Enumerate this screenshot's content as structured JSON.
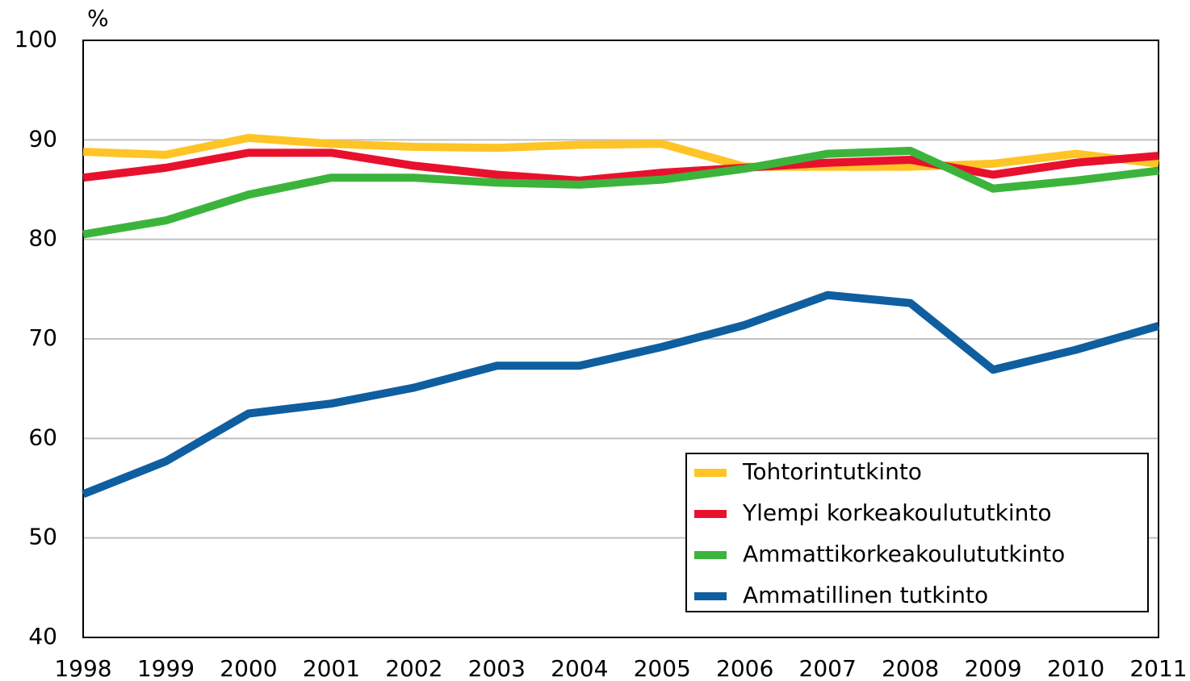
{
  "chart_data": {
    "type": "line",
    "y_label": "%",
    "x": [
      1998,
      1999,
      2000,
      2001,
      2002,
      2003,
      2004,
      2005,
      2006,
      2007,
      2008,
      2009,
      2010,
      2011
    ],
    "xlim": [
      1998,
      2011
    ],
    "xticks": [
      1998,
      1999,
      2000,
      2001,
      2002,
      2003,
      2004,
      2005,
      2006,
      2007,
      2008,
      2009,
      2010,
      2011
    ],
    "ylim": [
      40,
      100
    ],
    "yticks": [
      40,
      50,
      60,
      70,
      80,
      90,
      100
    ],
    "grid": true,
    "legend": "lower right",
    "series": [
      {
        "name": "Tohtorintutkinto",
        "color": "#ffc425",
        "values": [
          88.8,
          88.5,
          90.2,
          89.6,
          89.3,
          89.2,
          89.5,
          89.6,
          87.3,
          87.3,
          87.3,
          87.6,
          88.6,
          87.6
        ]
      },
      {
        "name": "Ylempi korkeakoulututkinto",
        "color": "#e8112d",
        "values": [
          86.2,
          87.2,
          88.7,
          88.7,
          87.4,
          86.5,
          85.9,
          86.7,
          87.2,
          87.7,
          88.0,
          86.5,
          87.7,
          88.4
        ]
      },
      {
        "name": "Ammattikorkeakoulututkinto",
        "color": "#3cb43c",
        "values": [
          80.5,
          81.9,
          84.5,
          86.2,
          86.2,
          85.7,
          85.5,
          86.0,
          87.1,
          88.6,
          88.9,
          85.1,
          85.9,
          86.9
        ]
      },
      {
        "name": "Ammatillinen tutkinto",
        "color": "#0f5ea0",
        "values": [
          54.4,
          57.7,
          62.5,
          63.5,
          65.1,
          67.3,
          67.3,
          69.2,
          71.4,
          74.4,
          73.6,
          66.9,
          68.9,
          71.3
        ]
      }
    ]
  }
}
